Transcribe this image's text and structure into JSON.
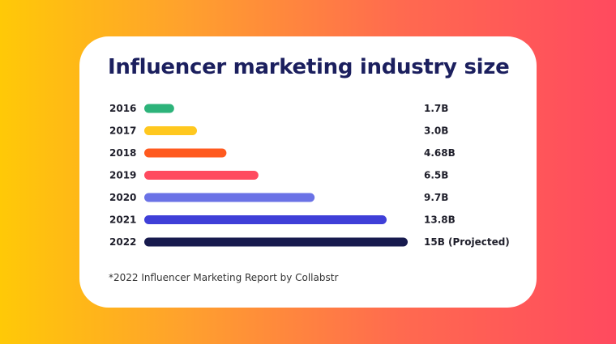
{
  "title": "Influencer marketing industry size",
  "footnote": "*2022 Influencer Marketing Report by Collabstr",
  "chart_data": {
    "type": "bar",
    "orientation": "horizontal",
    "categories": [
      "2016",
      "2017",
      "2018",
      "2019",
      "2020",
      "2021",
      "2022"
    ],
    "values": [
      1.7,
      3.0,
      4.68,
      6.5,
      9.7,
      13.8,
      15
    ],
    "value_labels": [
      "1.7B",
      "3.0B",
      "4.68B",
      "6.5B",
      "9.7B",
      "13.8B",
      "15B (Projected)"
    ],
    "colors": [
      "#2db37a",
      "#ffc81f",
      "#ff5a1f",
      "#ff4a5f",
      "#6a72e6",
      "#3f3fd8",
      "#171a4e"
    ],
    "xlim": [
      0,
      15
    ],
    "grid": false,
    "legend": "none"
  }
}
